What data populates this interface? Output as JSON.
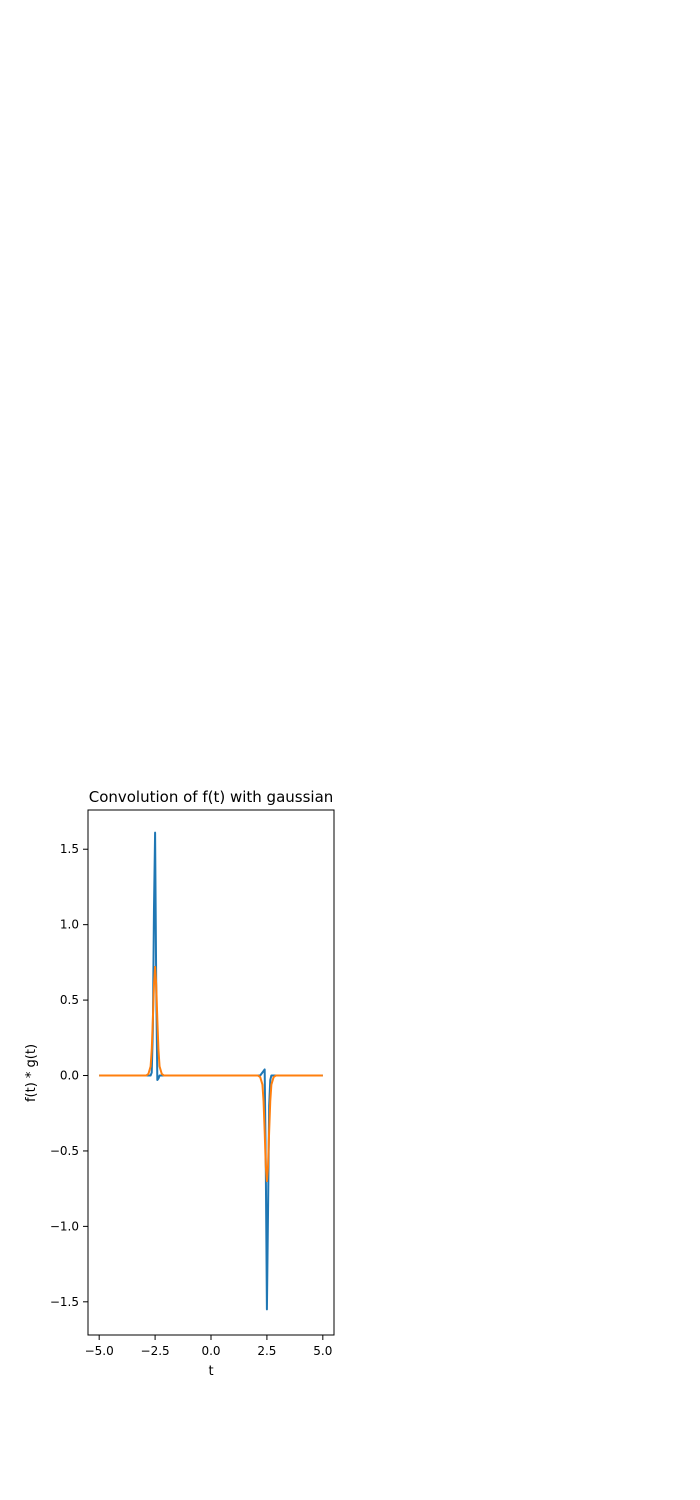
{
  "chart_data": {
    "type": "line",
    "title": "Convolution of f(t) with gaussian",
    "xlabel": "t",
    "ylabel": "f(t) * g(t)",
    "xlim": [
      -5.5,
      5.5
    ],
    "ylim": [
      -1.72,
      1.76
    ],
    "xticks": [
      -5.0,
      -2.5,
      0.0,
      2.5,
      5.0
    ],
    "xtick_labels": [
      "−5.0",
      "−2.5",
      "0.0",
      "2.5",
      "5.0"
    ],
    "yticks": [
      -1.5,
      -1.0,
      -0.5,
      0.0,
      0.5,
      1.0,
      1.5
    ],
    "ytick_labels": [
      "−1.5",
      "−1.0",
      "−0.5",
      "0.0",
      "0.5",
      "1.0",
      "1.5"
    ],
    "grid": false,
    "series": [
      {
        "color": "#1f77b4",
        "x": [
          -5.0,
          -2.8,
          -2.7,
          -2.65,
          -2.6,
          -2.55,
          -2.5,
          -2.45,
          -2.4,
          -2.35,
          -2.3,
          -2.2,
          2.2,
          2.3,
          2.35,
          2.4,
          2.45,
          2.5,
          2.55,
          2.6,
          2.65,
          2.7,
          2.8,
          5.0
        ],
        "y": [
          0.0,
          0.0,
          0.0,
          0.02,
          0.3,
          1.1,
          1.61,
          0.6,
          -0.03,
          -0.02,
          0.0,
          0.0,
          0.0,
          0.02,
          0.03,
          0.04,
          -0.6,
          -1.55,
          -0.9,
          -0.2,
          -0.03,
          0.0,
          0.0,
          0.0
        ]
      },
      {
        "color": "#ff7f0e",
        "x": [
          -5.0,
          -3.0,
          -2.9,
          -2.8,
          -2.7,
          -2.65,
          -2.6,
          -2.55,
          -2.5,
          -2.45,
          -2.4,
          -2.35,
          -2.3,
          -2.2,
          -2.1,
          -2.0,
          2.0,
          2.1,
          2.2,
          2.3,
          2.35,
          2.4,
          2.45,
          2.5,
          2.55,
          2.6,
          2.65,
          2.7,
          2.8,
          2.9,
          3.0,
          5.0
        ],
        "y": [
          0.0,
          0.0,
          0.0,
          0.01,
          0.06,
          0.17,
          0.37,
          0.6,
          0.72,
          0.6,
          0.37,
          0.17,
          0.06,
          0.01,
          0.0,
          0.0,
          0.0,
          0.0,
          -0.01,
          -0.06,
          -0.17,
          -0.37,
          -0.6,
          -0.7,
          -0.6,
          -0.37,
          -0.17,
          -0.06,
          -0.01,
          0.0,
          0.0,
          0.0
        ]
      }
    ]
  }
}
